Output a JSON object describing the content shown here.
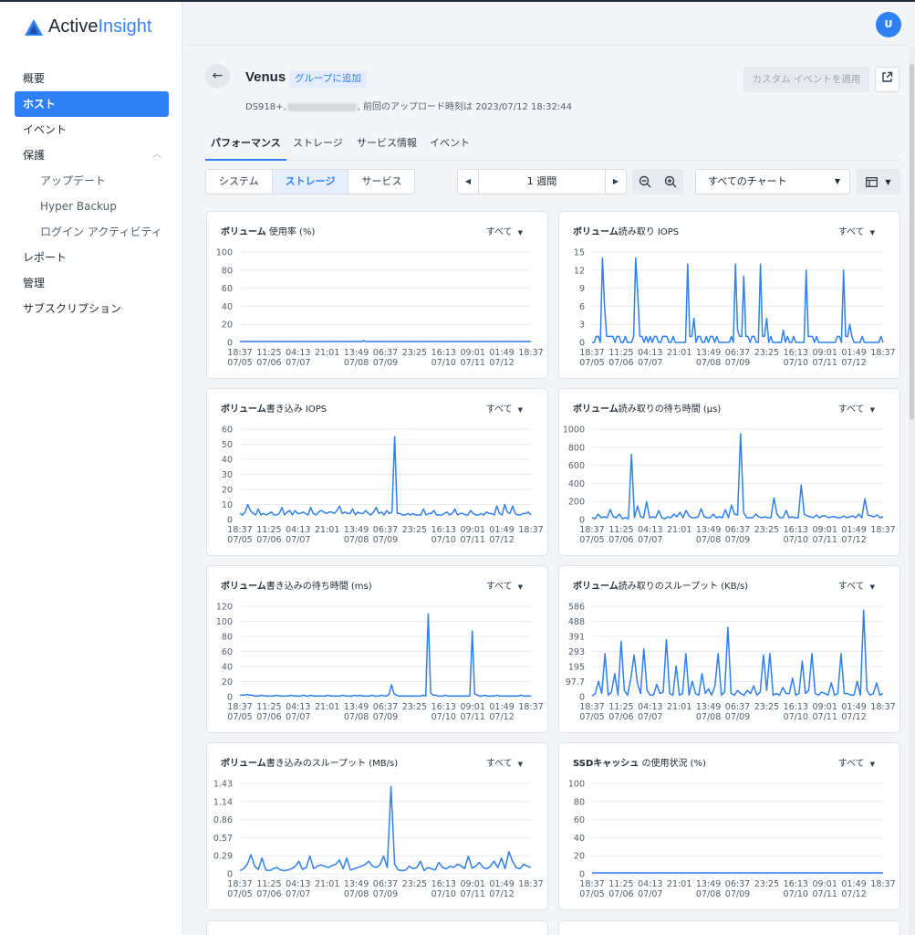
{
  "app": {
    "logo_part1": "Active",
    "logo_part2": "Insight",
    "avatar": "U"
  },
  "sidebar": {
    "items": [
      {
        "label": "概要",
        "active": false,
        "sub": false
      },
      {
        "label": "ホスト",
        "active": true,
        "sub": false
      },
      {
        "label": "イベント",
        "active": false,
        "sub": false
      },
      {
        "label": "保護",
        "active": false,
        "sub": false,
        "expanded": true
      },
      {
        "label": "アップデート",
        "active": false,
        "sub": true
      },
      {
        "label": "Hyper Backup",
        "active": false,
        "sub": true
      },
      {
        "label": "ログイン アクティビティ",
        "active": false,
        "sub": true
      },
      {
        "label": "レポート",
        "active": false,
        "sub": false
      },
      {
        "label": "管理",
        "active": false,
        "sub": false
      },
      {
        "label": "サブスクリプション",
        "active": false,
        "sub": false
      }
    ]
  },
  "header": {
    "host_name": "Venus",
    "group_badge": "グループに追加",
    "model": "DS918+,",
    "upload_text": ", 前回のアップロード時刻は 2023/07/12 18:32:44",
    "custom_event_button": "カスタム イベントを適用"
  },
  "tabs": [
    "パフォーマンス",
    "ストレージ",
    "サービス情報",
    "イベント"
  ],
  "segments": [
    "システム",
    "ストレージ",
    "サービス"
  ],
  "active_segment": 1,
  "period": "1 週間",
  "chart_select": "すべてのチャート",
  "x_ticks": [
    {
      "time": "18:37",
      "date": "07/05"
    },
    {
      "time": "11:25",
      "date": "07/06"
    },
    {
      "time": "04:13",
      "date": "07/07"
    },
    {
      "time": "21:01",
      "date": ""
    },
    {
      "time": "13:49",
      "date": "07/08"
    },
    {
      "time": "06:37",
      "date": "07/09"
    },
    {
      "time": "23:25",
      "date": ""
    },
    {
      "time": "16:13",
      "date": "07/10"
    },
    {
      "time": "09:01",
      "date": "07/11"
    },
    {
      "time": "01:49",
      "date": "07/12"
    },
    {
      "time": "18:37",
      "date": ""
    }
  ],
  "colors": {
    "accent": "#2f7ff5",
    "line": "#2f80ed",
    "grid": "#e8ebee"
  },
  "chart_data": [
    {
      "type": "line",
      "title_bold": "ボリューム",
      "title_rest": " 使用率 (%)",
      "filter": "すべて",
      "yticks": [
        "0",
        "20",
        "40",
        "60",
        "80",
        "100"
      ],
      "ylim": [
        0,
        100
      ],
      "values": [
        1,
        1,
        1,
        1,
        1,
        1,
        1,
        1,
        1,
        1,
        1,
        1,
        1,
        1,
        1,
        1,
        1,
        1,
        1,
        1,
        1,
        1,
        1,
        1,
        1,
        1,
        1,
        1,
        1,
        1,
        1,
        1,
        1,
        1,
        1,
        1,
        1,
        1,
        1,
        1,
        1,
        1,
        1,
        1,
        1,
        1,
        1,
        1,
        1,
        1,
        1,
        1,
        1,
        1,
        1,
        1,
        1,
        1,
        1,
        1,
        1,
        1,
        1,
        1,
        1,
        1,
        1,
        1,
        1,
        1,
        1,
        2,
        1,
        1,
        1,
        1,
        1,
        1,
        1,
        1,
        1,
        1,
        1,
        1,
        1,
        1,
        1,
        1,
        1,
        1,
        1,
        1,
        1,
        1,
        1,
        1,
        1,
        1,
        1,
        1,
        1,
        1,
        1,
        1,
        1,
        1,
        1,
        1,
        1,
        1,
        1,
        1,
        1,
        1,
        1,
        1,
        1,
        1,
        1,
        1,
        1,
        1,
        1,
        1,
        1,
        1,
        1,
        1,
        1,
        1,
        1,
        1,
        1,
        1,
        1,
        1,
        1,
        1,
        1,
        1,
        1,
        1,
        1,
        1,
        1,
        1,
        1,
        1,
        1,
        1,
        1,
        1,
        1,
        1,
        1,
        1,
        1,
        1,
        1,
        1,
        1,
        1,
        1,
        1,
        1,
        1,
        1,
        1
      ]
    },
    {
      "type": "line",
      "title_bold": "ボリューム",
      "title_rest": "読み取り IOPS",
      "filter": "すべて",
      "yticks": [
        "0",
        "3",
        "6",
        "9",
        "12",
        "15"
      ],
      "ylim": [
        0,
        15
      ],
      "values": [
        0,
        0,
        1,
        1,
        0,
        14,
        6,
        1,
        1,
        1,
        1,
        0,
        1,
        1,
        0,
        0,
        1,
        0,
        0,
        0,
        1,
        14,
        8,
        1,
        1,
        0,
        1,
        0,
        1,
        0,
        1,
        1,
        0,
        0,
        1,
        1,
        1,
        0,
        0,
        1,
        0,
        0,
        0,
        0,
        0,
        0,
        13,
        1,
        1,
        4,
        0,
        1,
        1,
        0,
        0,
        1,
        0,
        1,
        1,
        0,
        1,
        0,
        0,
        0,
        0,
        0,
        0,
        1,
        0,
        13,
        2,
        1,
        1,
        11,
        1,
        1,
        0,
        1,
        1,
        0,
        0,
        13,
        1,
        1,
        4,
        0,
        1,
        0,
        0,
        0,
        0,
        0,
        2,
        0,
        1,
        0,
        0,
        1,
        0,
        0,
        0,
        0,
        0,
        12,
        1,
        1,
        1,
        0,
        1,
        0,
        0,
        0,
        0,
        0,
        0,
        0,
        0,
        0,
        1,
        1,
        0,
        12,
        1,
        1,
        3,
        1,
        0,
        0,
        0,
        0,
        1,
        0,
        0,
        0,
        0,
        0,
        0,
        0,
        0,
        1,
        0
      ]
    },
    {
      "type": "line",
      "title_bold": "ボリューム",
      "title_rest": "書き込み IOPS",
      "filter": "すべて",
      "yticks": [
        "0",
        "10",
        "20",
        "30",
        "40",
        "50",
        "60"
      ],
      "ylim": [
        0,
        60
      ],
      "values": [
        4,
        3,
        5,
        10,
        6,
        4,
        3,
        7,
        3,
        4,
        3,
        4,
        5,
        3,
        3,
        4,
        8,
        3,
        5,
        6,
        3,
        6,
        4,
        4,
        5,
        4,
        3,
        8,
        4,
        3,
        5,
        6,
        5,
        4,
        5,
        5,
        4,
        6,
        9,
        4,
        5,
        4,
        4,
        7,
        3,
        5,
        4,
        4,
        6,
        4,
        3,
        5,
        8,
        4,
        5,
        3,
        6,
        4,
        5,
        55,
        4,
        4,
        3,
        3,
        4,
        3,
        4,
        3,
        3,
        3,
        7,
        3,
        4,
        4,
        6,
        3,
        3,
        3,
        4,
        5,
        3,
        4,
        7,
        3,
        4,
        4,
        3,
        3,
        6,
        4,
        3,
        3,
        4,
        3,
        5,
        4,
        4,
        3,
        9,
        4,
        3,
        10,
        5,
        4,
        9,
        4,
        3,
        3,
        4,
        4,
        5,
        3
      ]
    },
    {
      "type": "line",
      "title_bold": "ボリューム",
      "title_rest": "読み取りの待ち時間 (µs)",
      "filter": "すべて",
      "yticks": [
        "0",
        "200",
        "400",
        "600",
        "800",
        "1000"
      ],
      "ylim": [
        0,
        1000
      ],
      "values": [
        20,
        10,
        60,
        20,
        30,
        20,
        110,
        30,
        20,
        60,
        10,
        20,
        10,
        720,
        20,
        150,
        30,
        20,
        200,
        20,
        30,
        20,
        100,
        20,
        10,
        30,
        20,
        60,
        30,
        80,
        20,
        100,
        40,
        20,
        20,
        30,
        120,
        30,
        20,
        20,
        60,
        20,
        30,
        20,
        110,
        20,
        160,
        60,
        50,
        950,
        80,
        20,
        20,
        20,
        60,
        30,
        20,
        30,
        20,
        20,
        240,
        60,
        20,
        20,
        100,
        20,
        30,
        20,
        20,
        380,
        60,
        40,
        30,
        20,
        50,
        20,
        40,
        40,
        20,
        30,
        30,
        20,
        20,
        40,
        20,
        30,
        40,
        20,
        60,
        20,
        230,
        50,
        40,
        30,
        50,
        20,
        30
      ]
    },
    {
      "type": "line",
      "title_bold": "ボリューム",
      "title_rest": "書き込みの待ち時間 (ms)",
      "filter": "すべて",
      "yticks": [
        "0",
        "20",
        "40",
        "60",
        "80",
        "100",
        "120"
      ],
      "ylim": [
        0,
        120
      ],
      "values": [
        2,
        2,
        2,
        3,
        2,
        2,
        1,
        1,
        1,
        2,
        1,
        1,
        1,
        1,
        1,
        2,
        1,
        1,
        1,
        1,
        1,
        2,
        1,
        1,
        1,
        1,
        2,
        1,
        1,
        2,
        1,
        1,
        1,
        1,
        1,
        1,
        2,
        1,
        1,
        1,
        1,
        1,
        2,
        1,
        1,
        1,
        1,
        2,
        1,
        2,
        1,
        1,
        1,
        1,
        2,
        1,
        1,
        1,
        2,
        1,
        1,
        3,
        16,
        4,
        2,
        1,
        1,
        1,
        1,
        1,
        1,
        1,
        1,
        1,
        1,
        2,
        1,
        110,
        5,
        2,
        2,
        1,
        1,
        1,
        2,
        1,
        1,
        1,
        1,
        1,
        1,
        1,
        1,
        1,
        1,
        87,
        4,
        2,
        1,
        1,
        2,
        1,
        1,
        1,
        1,
        2,
        1,
        1,
        1,
        1,
        1,
        1,
        1,
        1,
        1,
        2,
        1,
        1,
        1,
        1
      ]
    },
    {
      "type": "line",
      "title_bold": "ボリューム",
      "title_rest": "読み取りのスループット (KB/s)",
      "filter": "すべて",
      "yticks": [
        "0",
        "97.7",
        "195",
        "293",
        "391",
        "488",
        "586"
      ],
      "ylim": [
        0,
        586
      ],
      "values": [
        5,
        20,
        100,
        20,
        280,
        10,
        30,
        150,
        10,
        360,
        40,
        10,
        120,
        270,
        90,
        20,
        310,
        40,
        10,
        10,
        80,
        20,
        30,
        370,
        20,
        10,
        200,
        10,
        20,
        280,
        10,
        100,
        20,
        10,
        150,
        20,
        50,
        10,
        70,
        280,
        10,
        30,
        450,
        20,
        10,
        40,
        20,
        10,
        40,
        20,
        70,
        10,
        30,
        270,
        40,
        280,
        10,
        20,
        10,
        60,
        20,
        20,
        120,
        10,
        20,
        230,
        20,
        40,
        280,
        20,
        10,
        30,
        20,
        10,
        90,
        10,
        20,
        280,
        20,
        20,
        10,
        10,
        100,
        10,
        560,
        40,
        10,
        20,
        90,
        10,
        20
      ]
    },
    {
      "type": "line",
      "title_bold": "ボリューム",
      "title_rest": "書き込みのスループット (MB/s)",
      "filter": "すべて",
      "yticks": [
        "0",
        "0.29",
        "0.57",
        "0.86",
        "1.14",
        "1.43"
      ],
      "ylim": [
        0,
        1.43
      ],
      "values": [
        0.05,
        0.08,
        0.15,
        0.3,
        0.12,
        0.07,
        0.25,
        0.06,
        0.05,
        0.08,
        0.1,
        0.06,
        0.05,
        0.06,
        0.08,
        0.12,
        0.2,
        0.07,
        0.1,
        0.28,
        0.08,
        0.12,
        0.14,
        0.12,
        0.1,
        0.13,
        0.15,
        0.22,
        0.08,
        0.25,
        0.06,
        0.08,
        0.1,
        0.12,
        0.15,
        0.2,
        0.12,
        0.1,
        0.14,
        0.28,
        0.1,
        1.38,
        0.15,
        0.06,
        0.05,
        0.06,
        0.12,
        0.08,
        0.1,
        0.2,
        0.05,
        0.1,
        0.08,
        0.06,
        0.18,
        0.1,
        0.08,
        0.12,
        0.1,
        0.15,
        0.13,
        0.08,
        0.28,
        0.09,
        0.12,
        0.18,
        0.1,
        0.08,
        0.12,
        0.2,
        0.1,
        0.25,
        0.08,
        0.35,
        0.2,
        0.1,
        0.08,
        0.15,
        0.12,
        0.1
      ]
    },
    {
      "type": "line",
      "title_bold": "SSDキャッシュ",
      "title_rest": " の使用状況 (%)",
      "filter": "すべて",
      "yticks": [
        "0",
        "20",
        "40",
        "60",
        "80",
        "100"
      ],
      "ylim": [
        0,
        100
      ],
      "values": [
        1,
        1,
        1,
        1,
        1,
        1,
        1,
        1,
        1,
        1,
        1,
        1,
        1,
        1,
        1,
        1,
        1,
        1,
        1,
        1,
        1,
        1,
        1,
        1,
        1,
        1,
        1,
        1,
        1,
        1,
        1,
        1,
        1,
        1,
        1,
        1,
        1,
        1,
        1,
        1,
        1,
        1,
        1,
        1,
        1,
        1,
        1,
        1,
        1,
        1,
        1,
        1,
        1,
        1,
        1,
        1,
        1,
        1,
        1,
        1,
        1,
        1,
        1,
        1,
        1,
        1,
        1,
        1,
        1,
        1,
        1,
        1,
        1,
        1,
        1,
        1,
        1,
        1,
        1,
        1
      ]
    }
  ]
}
